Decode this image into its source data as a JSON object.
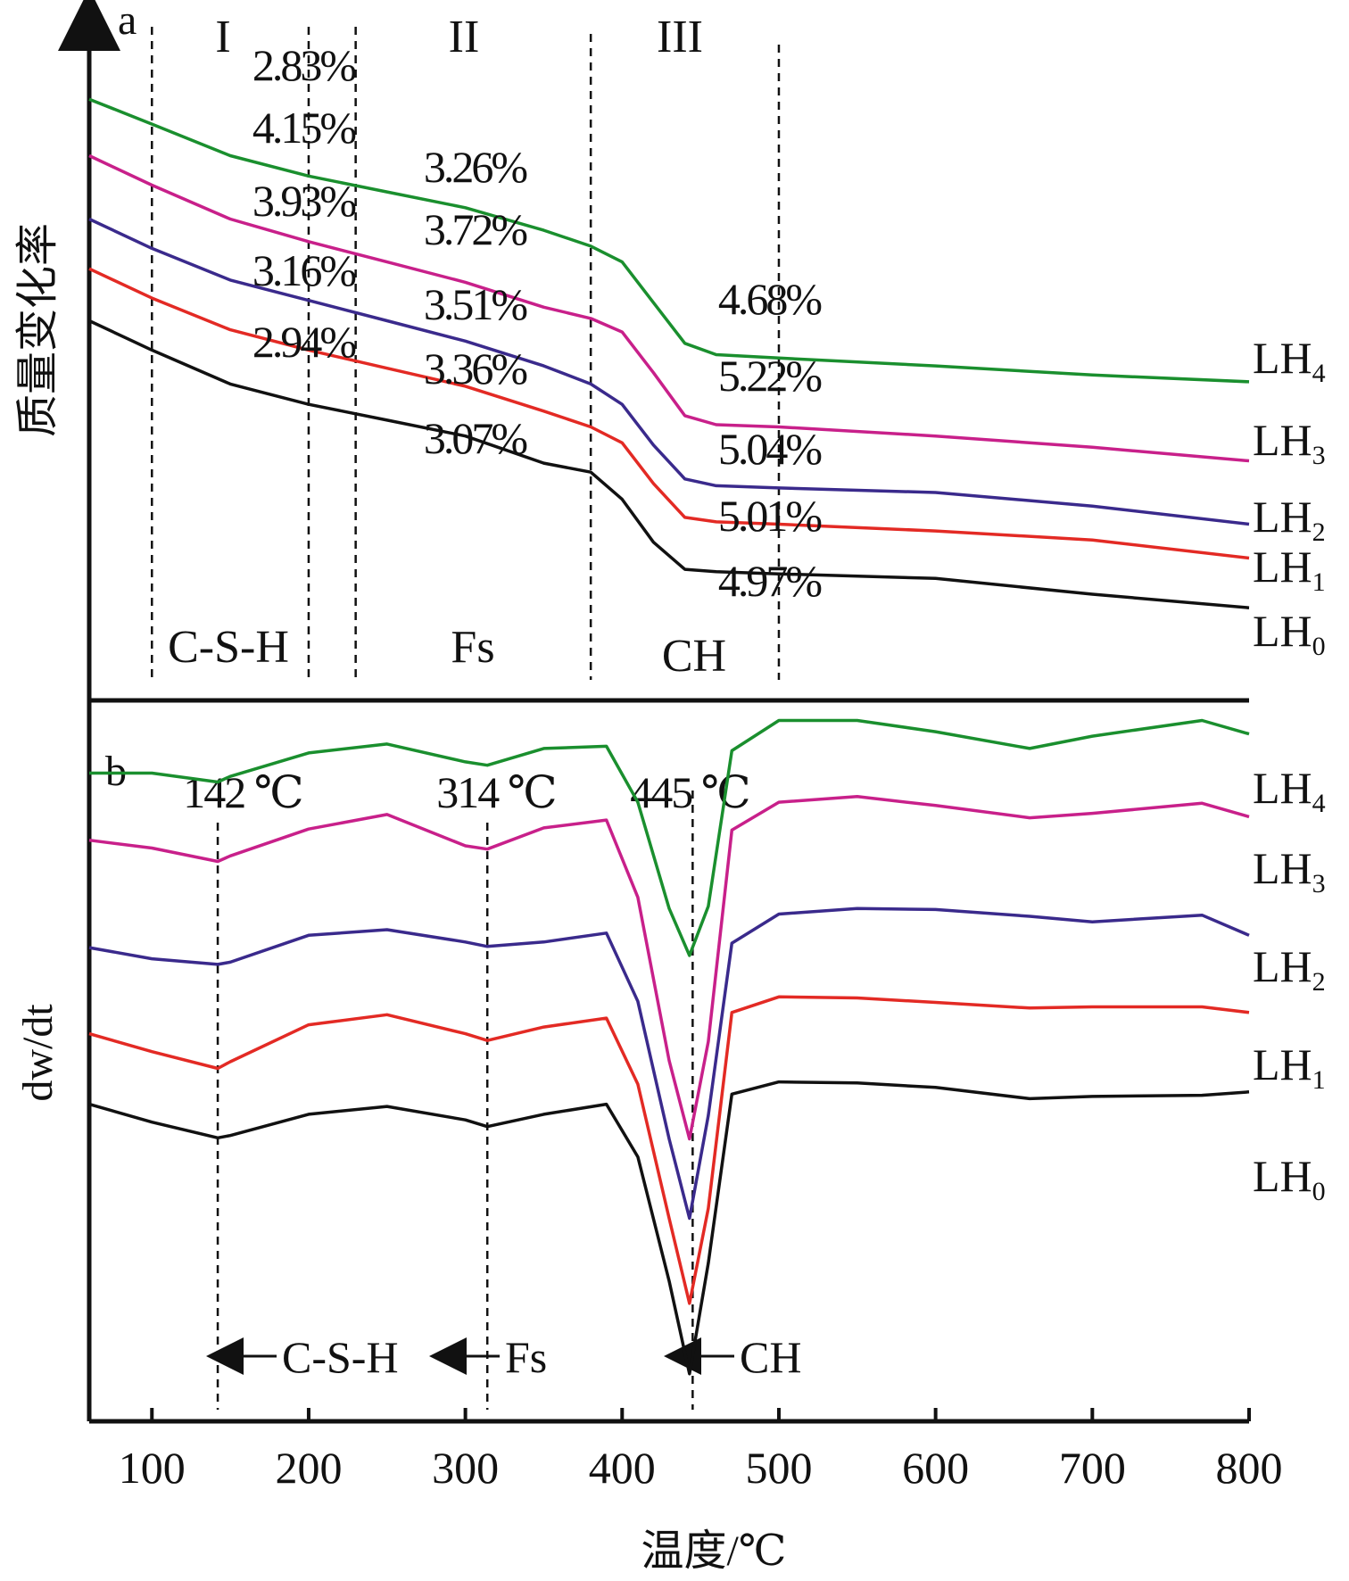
{
  "chart_data": [
    {
      "panel": "a",
      "type": "line",
      "ylabel": "质量变化率",
      "xlabel": "温度/℃",
      "xlim": [
        60,
        800
      ],
      "x_ticks": [
        100,
        200,
        300,
        400,
        500,
        600,
        700,
        800
      ],
      "region_numerals": [
        "I",
        "II",
        "III"
      ],
      "region_phases": [
        "C-S-H",
        "Fs",
        "CH"
      ],
      "boundaries": [
        100,
        200,
        230,
        380,
        500
      ],
      "series": [
        {
          "name": "LH",
          "subscript": "4",
          "color": "#1a8f2e",
          "x": [
            60,
            100,
            150,
            200,
            250,
            300,
            350,
            380,
            400,
            420,
            440,
            460,
            500,
            600,
            700,
            800
          ],
          "y": [
            26.4,
            25.3,
            23.9,
            23.0,
            22.3,
            21.6,
            20.6,
            19.9,
            19.2,
            17.4,
            15.6,
            15.1,
            14.95,
            14.6,
            14.2,
            13.9
          ],
          "pct_labels": [
            "2.83%",
            "3.26%",
            "4.68%"
          ]
        },
        {
          "name": "LH",
          "subscript": "3",
          "color": "#c8208a",
          "x": [
            60,
            100,
            150,
            200,
            250,
            300,
            350,
            380,
            400,
            420,
            440,
            460,
            500,
            600,
            700,
            800
          ],
          "y": [
            23.9,
            22.6,
            21.1,
            20.1,
            19.2,
            18.3,
            17.2,
            16.7,
            16.1,
            14.3,
            12.4,
            12.0,
            11.9,
            11.5,
            11.0,
            10.4
          ],
          "pct_labels": [
            "4.15%",
            "3.72%",
            "5.22%"
          ]
        },
        {
          "name": "LH",
          "subscript": "2",
          "color": "#3a2a8c",
          "x": [
            60,
            100,
            150,
            200,
            250,
            300,
            350,
            380,
            400,
            420,
            440,
            460,
            500,
            600,
            700,
            800
          ],
          "y": [
            21.1,
            19.8,
            18.4,
            17.5,
            16.6,
            15.7,
            14.6,
            13.8,
            12.9,
            11.1,
            9.6,
            9.3,
            9.2,
            9.0,
            8.4,
            7.6
          ],
          "pct_labels": [
            "3.93%",
            "3.51%",
            "5.04%"
          ]
        },
        {
          "name": "LH",
          "subscript": "1",
          "color": "#e32a24",
          "x": [
            60,
            100,
            150,
            200,
            250,
            300,
            350,
            380,
            400,
            420,
            440,
            460,
            500,
            600,
            700,
            800
          ],
          "y": [
            18.9,
            17.6,
            16.2,
            15.3,
            14.5,
            13.7,
            12.6,
            11.9,
            11.2,
            9.4,
            7.9,
            7.7,
            7.6,
            7.3,
            6.9,
            6.1
          ],
          "pct_labels": [
            "3.16%",
            "3.36%",
            "5.01%"
          ]
        },
        {
          "name": "LH",
          "subscript": "0",
          "color": "#111111",
          "x": [
            60,
            100,
            150,
            200,
            250,
            300,
            350,
            380,
            400,
            420,
            440,
            460,
            500,
            600,
            700,
            800
          ],
          "y": [
            16.6,
            15.3,
            13.8,
            12.9,
            12.2,
            11.5,
            10.3,
            9.9,
            8.7,
            6.8,
            5.6,
            5.5,
            5.4,
            5.2,
            4.5,
            3.9
          ],
          "pct_labels": [
            "2.94%",
            "3.07%",
            "4.97%"
          ]
        }
      ]
    },
    {
      "panel": "b",
      "type": "line",
      "ylabel": "dw/dt",
      "xlabel": "温度/℃",
      "xlim": [
        60,
        800
      ],
      "x_ticks": [
        100,
        200,
        300,
        400,
        500,
        600,
        700,
        800
      ],
      "peaks": [
        {
          "x": 142,
          "label": "142 ℃",
          "phase": "C-S-H"
        },
        {
          "x": 314,
          "label": "314 ℃",
          "phase": "Fs"
        },
        {
          "x": 445,
          "label": "445 ℃",
          "phase": "CH"
        }
      ],
      "series": [
        {
          "name": "LH",
          "subscript": "4",
          "color": "#1a8f2e",
          "x": [
            60,
            100,
            142,
            150,
            200,
            250,
            300,
            314,
            350,
            390,
            410,
            430,
            443,
            455,
            470,
            500,
            550,
            600,
            660,
            700,
            770,
            800
          ],
          "y": [
            45.7,
            45.7,
            44.9,
            45.4,
            47.5,
            48.3,
            46.7,
            46.4,
            47.9,
            48.1,
            43.1,
            33.6,
            29.4,
            33.8,
            47.7,
            50.4,
            50.4,
            49.4,
            47.9,
            49.0,
            50.4,
            49.2
          ]
        },
        {
          "name": "LH",
          "subscript": "3",
          "color": "#c8208a",
          "x": [
            60,
            100,
            142,
            150,
            200,
            250,
            300,
            314,
            350,
            390,
            410,
            430,
            443,
            455,
            470,
            500,
            550,
            600,
            660,
            700,
            770,
            800
          ],
          "y": [
            39.7,
            39.0,
            37.8,
            38.3,
            40.7,
            42.0,
            39.2,
            38.9,
            40.8,
            41.5,
            34.6,
            20.0,
            13.0,
            21.7,
            40.6,
            43.1,
            43.6,
            42.8,
            41.7,
            42.1,
            43.0,
            41.8
          ]
        },
        {
          "name": "LH",
          "subscript": "2",
          "color": "#3a2a8c",
          "x": [
            60,
            100,
            142,
            150,
            200,
            250,
            300,
            314,
            350,
            390,
            410,
            430,
            443,
            455,
            470,
            500,
            550,
            600,
            660,
            700,
            770,
            800
          ],
          "y": [
            30.1,
            29.1,
            28.6,
            28.8,
            31.2,
            31.7,
            30.6,
            30.2,
            30.6,
            31.4,
            25.3,
            13.0,
            5.9,
            15.1,
            30.5,
            33.1,
            33.6,
            33.5,
            32.9,
            32.4,
            33.0,
            31.2
          ]
        },
        {
          "name": "LH",
          "subscript": "1",
          "color": "#e32a24",
          "x": [
            60,
            100,
            142,
            150,
            200,
            250,
            300,
            314,
            350,
            390,
            410,
            430,
            443,
            455,
            470,
            500,
            550,
            600,
            660,
            700,
            770,
            800
          ],
          "y": [
            22.4,
            20.8,
            19.3,
            19.9,
            23.2,
            24.1,
            22.4,
            21.8,
            23.0,
            23.8,
            17.9,
            5.9,
            -1.7,
            6.8,
            24.3,
            25.7,
            25.6,
            25.2,
            24.7,
            24.8,
            24.8,
            24.3
          ]
        },
        {
          "name": "LH",
          "subscript": "0",
          "color": "#111111",
          "x": [
            60,
            100,
            142,
            150,
            200,
            250,
            300,
            314,
            350,
            390,
            410,
            430,
            443,
            455,
            470,
            500,
            550,
            600,
            660,
            700,
            770,
            800
          ],
          "y": [
            16.1,
            14.5,
            13.1,
            13.3,
            15.2,
            15.9,
            14.7,
            14.1,
            15.2,
            16.1,
            11.4,
            0.3,
            -8.0,
            1.9,
            17.0,
            18.1,
            18.0,
            17.6,
            16.6,
            16.8,
            16.9,
            17.2
          ]
        }
      ]
    }
  ]
}
